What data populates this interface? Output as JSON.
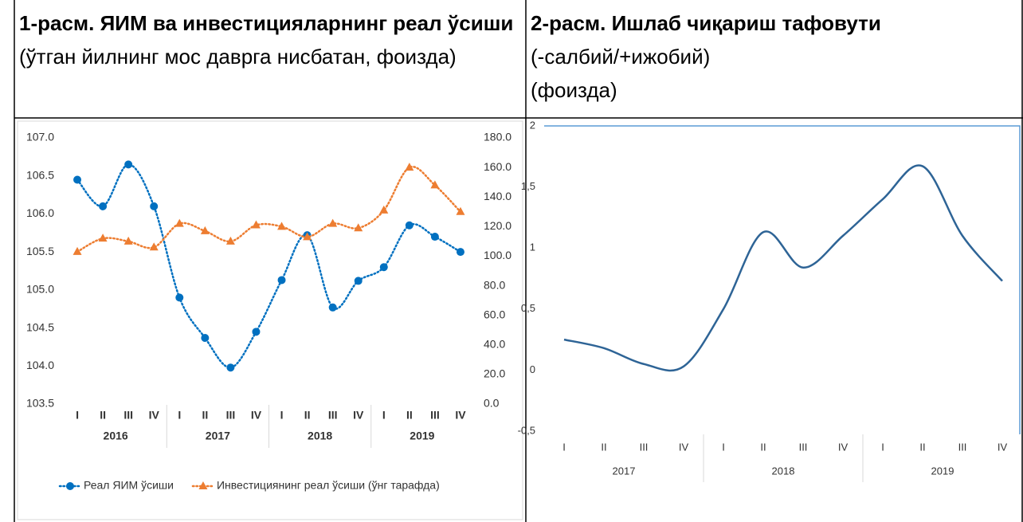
{
  "header": {
    "cell1": {
      "title": "1-расм. ЯИМ ва инвестицияларнинг реал ўсиши",
      "subtitle": "(ўтган йилнинг мос даврга нисбатан, фоизда)"
    },
    "cell2": {
      "title": "2-расм. Ишлаб чиқариш тафовути",
      "subtitle": "(-салбий/+ижобий)",
      "unit": "(фоизда)"
    }
  },
  "chart_data": [
    {
      "type": "line",
      "categories": [
        "I",
        "II",
        "III",
        "IV",
        "I",
        "II",
        "III",
        "IV",
        "I",
        "II",
        "III",
        "IV",
        "I",
        "II",
        "III",
        "IV"
      ],
      "groups": [
        "2016",
        "2017",
        "2018",
        "2019"
      ],
      "series": [
        {
          "name": "Реал ЯИМ  ўсиши",
          "color": "#0070c0",
          "marker": "circle",
          "values": [
            106.45,
            106.1,
            106.65,
            106.1,
            104.9,
            104.37,
            103.98,
            104.45,
            105.13,
            105.72,
            104.77,
            105.12,
            105.3,
            105.85,
            105.7,
            105.5
          ]
        },
        {
          "name": "Инвестициянинг реал ўсиши (ўнг тарафда)",
          "color": "#ed7d31",
          "marker": "triangle",
          "axis": "y2",
          "values": [
            103,
            112,
            110,
            106,
            122,
            117,
            110,
            121,
            120,
            113,
            122,
            119,
            131,
            160,
            148,
            130
          ]
        }
      ],
      "ylim": [
        103.5,
        107
      ],
      "yticks": [
        103.5,
        {
          "value": 104,
          "label": "104.0"
        },
        104.5,
        {
          "value": 105,
          "label": "105.0"
        },
        105.5,
        {
          "value": 106,
          "label": "106.0"
        },
        106.5,
        {
          "value": 107,
          "label": "107.0"
        }
      ],
      "y2lim": [
        0,
        180
      ],
      "y2ticks": [
        {
          "value": 0,
          "label": "0.0"
        },
        {
          "value": 20,
          "label": "20.0"
        },
        {
          "value": 40,
          "label": "40.0"
        },
        {
          "value": 60,
          "label": "60.0"
        },
        {
          "value": 80,
          "label": "80.0"
        },
        {
          "value": 100,
          "label": "100.0"
        },
        {
          "value": 120,
          "label": "120.0"
        },
        {
          "value": 140,
          "label": "140.0"
        },
        {
          "value": 160,
          "label": "160.0"
        },
        {
          "value": 180,
          "label": "180.0"
        }
      ],
      "legend": "bottom",
      "line_style": "dotted"
    },
    {
      "type": "line",
      "categories": [
        "I",
        "II",
        "III",
        "IV",
        "I",
        "II",
        "III",
        "IV",
        "I",
        "II",
        "III",
        "IV"
      ],
      "groups": [
        "2017",
        "2018",
        "2019"
      ],
      "series": [
        {
          "color": "#2e6496",
          "values": [
            0.25,
            0.18,
            0.05,
            0.03,
            0.5,
            1.13,
            0.84,
            1.1,
            1.4,
            1.67,
            1.1,
            0.73
          ]
        }
      ],
      "ylim": [
        -0.5,
        2
      ],
      "yticks": [
        {
          "value": -0.5,
          "label": "-0,5"
        },
        0,
        {
          "value": 0.5,
          "label": "0,5"
        },
        1,
        {
          "value": 1.5,
          "label": "1,5"
        },
        2
      ],
      "line_style": "smooth"
    }
  ]
}
